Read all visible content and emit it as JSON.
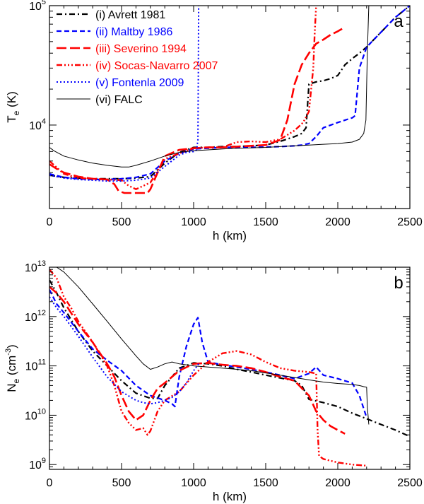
{
  "chart_data": [
    {
      "type": "line",
      "panel_label": "a",
      "xlabel": "h (km)",
      "ylabel_main": "T",
      "ylabel_sub": "e",
      "ylabel_unit": " (K)",
      "y_scale": "log",
      "xlim": [
        0,
        2500
      ],
      "ylim": [
        2000,
        100000
      ],
      "x_ticks": [
        {
          "value": 0,
          "label": "0"
        },
        {
          "value": 500,
          "label": "500"
        },
        {
          "value": 1000,
          "label": "1000"
        },
        {
          "value": 1500,
          "label": "1500"
        },
        {
          "value": 2000,
          "label": "2000"
        },
        {
          "value": 2500,
          "label": "2500"
        }
      ],
      "y_ticks": [
        {
          "value": 10000,
          "base": "10",
          "exp": "4"
        },
        {
          "value": 100000,
          "base": "10",
          "exp": "5"
        }
      ],
      "legend_position": "top-left",
      "series": [
        {
          "name": "(i) Avrett 1981",
          "color": "#000000",
          "dash": "8,4,2,4",
          "width": 2.2,
          "x": [
            0,
            100,
            200,
            300,
            400,
            500,
            600,
            700,
            800,
            900,
            1000,
            1100,
            1200,
            1300,
            1400,
            1500,
            1600,
            1700,
            1750,
            1780,
            1800,
            1850,
            1900,
            1950,
            2000,
            2050,
            2100,
            2150,
            2200,
            2300,
            2400,
            2500
          ],
          "y": [
            3800,
            3650,
            3600,
            3550,
            3550,
            3550,
            3600,
            3700,
            4800,
            5900,
            6500,
            6500,
            6600,
            6600,
            6700,
            6800,
            7300,
            8000,
            8500,
            9500,
            22000,
            23000,
            23500,
            24500,
            26000,
            32000,
            36000,
            40000,
            45000,
            60000,
            80000,
            100000
          ]
        },
        {
          "name": "(ii) Maltby 1986",
          "color": "#0000ff",
          "dash": "7,4",
          "width": 2.2,
          "x": [
            0,
            100,
            200,
            300,
            400,
            500,
            600,
            700,
            800,
            900,
            1000,
            1100,
            1200,
            1300,
            1400,
            1500,
            1600,
            1700,
            1750,
            1800,
            1850,
            1900,
            2000,
            2050,
            2100,
            2120,
            2150,
            2200,
            2300,
            2400,
            2500
          ],
          "y": [
            3900,
            3650,
            3550,
            3500,
            3500,
            3550,
            3650,
            3900,
            5000,
            5800,
            6300,
            6400,
            6500,
            6500,
            6500,
            6550,
            6600,
            6700,
            6800,
            7000,
            8000,
            9500,
            10500,
            11000,
            11500,
            12000,
            30000,
            45000,
            60000,
            80000,
            100000
          ]
        },
        {
          "name": "(iii) Severino 1994",
          "color": "#ff0000",
          "dash": "14,5",
          "width": 2.6,
          "x": [
            0,
            50,
            100,
            200,
            300,
            400,
            450,
            480,
            520,
            600,
            680,
            700,
            800,
            900,
            1000,
            1100,
            1200,
            1300,
            1400,
            1500,
            1600,
            1650,
            1700,
            1750,
            1800,
            1850,
            1900,
            1950,
            2000,
            2030
          ],
          "y": [
            4700,
            4300,
            4000,
            3700,
            3550,
            3500,
            3200,
            2800,
            2700,
            2700,
            2700,
            2900,
            5500,
            6200,
            6400,
            6500,
            6500,
            6600,
            6700,
            6800,
            7500,
            11000,
            22000,
            32000,
            40000,
            48000,
            52000,
            57000,
            61000,
            64000
          ]
        },
        {
          "name": "(iv) Socas-Navarro 2007",
          "color": "#ff0000",
          "dash": "8,3,2,3,2,3,2,3",
          "width": 2.4,
          "x": [
            0,
            100,
            200,
            300,
            400,
            500,
            550,
            600,
            700,
            800,
            900,
            1000,
            1100,
            1200,
            1300,
            1400,
            1500,
            1600,
            1700,
            1760,
            1800,
            1830,
            1840,
            1850
          ],
          "y": [
            5000,
            3900,
            3600,
            3550,
            3500,
            3450,
            3100,
            2900,
            3300,
            5200,
            5800,
            6400,
            6500,
            6500,
            7200,
            7300,
            7200,
            7600,
            9000,
            10500,
            13000,
            30000,
            60000,
            100000
          ]
        },
        {
          "name": "(v) Fontenla 2009",
          "color": "#0000ff",
          "dash": "2,3",
          "width": 2.0,
          "x": [
            0,
            100,
            200,
            300,
            400,
            500,
            600,
            700,
            800,
            900,
            950,
            1000,
            1020,
            1030,
            1033,
            1035
          ],
          "y": [
            3800,
            3600,
            3500,
            3450,
            3400,
            3400,
            3450,
            3600,
            4500,
            5600,
            5900,
            6000,
            6200,
            7500,
            30000,
            100000
          ]
        },
        {
          "name": "(vi) FALC",
          "color": "#000000",
          "dash": "",
          "width": 1.0,
          "x": [
            0,
            30,
            100,
            200,
            300,
            400,
            500,
            550,
            600,
            700,
            800,
            900,
            1000,
            1100,
            1200,
            1300,
            1400,
            1500,
            1600,
            1700,
            1800,
            1900,
            2000,
            2100,
            2150,
            2180,
            2195,
            2205,
            2215
          ],
          "y": [
            6500,
            6100,
            5500,
            5100,
            4800,
            4600,
            4450,
            4450,
            4600,
            5000,
            5500,
            5900,
            6100,
            6200,
            6300,
            6400,
            6450,
            6500,
            6600,
            6700,
            6800,
            6900,
            7000,
            7200,
            7600,
            8500,
            11000,
            40000,
            100000
          ]
        }
      ]
    },
    {
      "type": "line",
      "panel_label": "b",
      "xlabel": "h (km)",
      "ylabel_main": "N",
      "ylabel_sub": "e",
      "ylabel_unit_pre": " (cm",
      "ylabel_unit_exp": "-3",
      "ylabel_unit_post": ")",
      "y_scale": "log",
      "xlim": [
        0,
        2500
      ],
      "ylim": [
        800000000,
        10000000000000
      ],
      "x_ticks": [
        {
          "value": 0,
          "label": "0"
        },
        {
          "value": 500,
          "label": "500"
        },
        {
          "value": 1000,
          "label": "1000"
        },
        {
          "value": 1500,
          "label": "1500"
        },
        {
          "value": 2000,
          "label": "2000"
        },
        {
          "value": 2500,
          "label": "2500"
        }
      ],
      "y_ticks": [
        {
          "value": 1000000000,
          "base": "10",
          "exp": "9"
        },
        {
          "value": 10000000000,
          "base": "10",
          "exp": "10"
        },
        {
          "value": 100000000000,
          "base": "10",
          "exp": "11"
        },
        {
          "value": 1000000000000,
          "base": "10",
          "exp": "12"
        },
        {
          "value": 10000000000000,
          "base": "10",
          "exp": "13"
        }
      ],
      "series": [
        {
          "name": "(i) Avrett 1981",
          "color": "#000000",
          "dash": "8,4,2,4",
          "width": 2.2,
          "x": [
            0,
            50,
            100,
            200,
            300,
            400,
            500,
            600,
            700,
            750,
            800,
            900,
            1000,
            1100,
            1200,
            1300,
            1400,
            1500,
            1600,
            1700,
            1750,
            1800,
            1900,
            2000,
            2100,
            2200,
            2300,
            2400,
            2500
          ],
          "y": [
            5500000000000,
            3000000000000,
            1500000000000,
            500000000000,
            200000000000,
            100000000000,
            50000000000,
            28000000000,
            22000000000,
            22000000000,
            40000000000,
            90000000000,
            115000000000,
            110000000000,
            100000000000,
            85000000000,
            75000000000,
            65000000000,
            57000000000,
            50000000000,
            40000000000,
            21000000000,
            18000000000,
            15000000000,
            11000000000,
            8500000000,
            6500000000,
            5000000000,
            3700000000
          ]
        },
        {
          "name": "(ii) Maltby 1986",
          "color": "#0000ff",
          "dash": "7,4",
          "width": 2.2,
          "x": [
            0,
            50,
            100,
            200,
            300,
            400,
            500,
            600,
            700,
            800,
            850,
            870,
            900,
            950,
            1000,
            1030,
            1060,
            1100,
            1200,
            1300,
            1400,
            1500,
            1600,
            1700,
            1800,
            1850,
            1900,
            2000,
            2100,
            2150,
            2200
          ],
          "y": [
            3500000000000,
            1800000000000,
            1200000000000,
            500000000000,
            220000000000,
            130000000000,
            80000000000,
            40000000000,
            25000000000,
            20000000000,
            17000000000,
            15000000000,
            60000000000,
            250000000000,
            700000000000,
            950000000000,
            300000000000,
            120000000000,
            105000000000,
            95000000000,
            85000000000,
            75000000000,
            65000000000,
            55000000000,
            70000000000,
            95000000000,
            65000000000,
            55000000000,
            45000000000,
            25000000000,
            9000000000
          ]
        },
        {
          "name": "(iii) Severino 1994",
          "color": "#ff0000",
          "dash": "14,5",
          "width": 2.6,
          "x": [
            0,
            50,
            100,
            200,
            300,
            400,
            450,
            500,
            550,
            600,
            650,
            700,
            750,
            800,
            900,
            1000,
            1100,
            1200,
            1300,
            1400,
            1500,
            1600,
            1700,
            1800,
            1850,
            1900,
            1950,
            2000,
            2050
          ],
          "y": [
            4000000000000,
            3000000000000,
            2000000000000,
            700000000000,
            300000000000,
            110000000000,
            60000000000,
            25000000000,
            12000000000,
            8000000000,
            10000000000,
            20000000000,
            35000000000,
            45000000000,
            80000000000,
            110000000000,
            115000000000,
            105000000000,
            100000000000,
            90000000000,
            75000000000,
            60000000000,
            50000000000,
            25000000000,
            12000000000,
            8000000000,
            6000000000,
            5000000000,
            4200000000
          ]
        },
        {
          "name": "(iv) Socas-Navarro 2007",
          "color": "#ff0000",
          "dash": "8,3,2,3,2,3,2,3",
          "width": 2.4,
          "x": [
            0,
            50,
            100,
            150,
            200,
            300,
            400,
            450,
            500,
            550,
            600,
            650,
            680,
            700,
            750,
            800,
            900,
            1000,
            1100,
            1200,
            1300,
            1400,
            1500,
            1600,
            1700,
            1800,
            1850,
            1860,
            1870,
            1900,
            2000,
            2100,
            2200
          ],
          "y": [
            9000000000000,
            6000000000000,
            2500000000000,
            1500000000000,
            800000000000,
            300000000000,
            100000000000,
            40000000000,
            12000000000,
            7000000000,
            5000000000,
            5500000000,
            4000000000,
            4800000000,
            12000000000,
            20000000000,
            30000000000,
            65000000000,
            120000000000,
            180000000000,
            200000000000,
            170000000000,
            120000000000,
            90000000000,
            80000000000,
            75000000000,
            70000000000,
            5000000000,
            1500000000,
            1300000000,
            1100000000,
            1000000000,
            950000000
          ]
        },
        {
          "name": "(v) Fontenla 2009",
          "color": "#0000ff",
          "dash": "2,3",
          "width": 2.0,
          "x": [
            0,
            50,
            100,
            200,
            300,
            400,
            500,
            600,
            650,
            700,
            750,
            800,
            850,
            900,
            950,
            1000,
            1035
          ],
          "y": [
            2500000000000,
            1500000000000,
            1000000000000,
            400000000000,
            150000000000,
            60000000000,
            30000000000,
            20000000000,
            18000000000,
            17000000000,
            18000000000,
            20000000000,
            23000000000,
            30000000000,
            45000000000,
            80000000000,
            110000000000
          ]
        },
        {
          "name": "(vi) FALC",
          "color": "#000000",
          "dash": "",
          "width": 1.0,
          "x": [
            0,
            50,
            100,
            200,
            300,
            400,
            500,
            600,
            650,
            700,
            750,
            800,
            850,
            900,
            1000,
            1100,
            1200,
            1300,
            1400,
            1500,
            1600,
            1700,
            1800,
            1900,
            2000,
            2100,
            2150,
            2180,
            2200,
            2205,
            2215
          ],
          "y": [
            10000000000000,
            10000000000000,
            8000000000000,
            4000000000000,
            1800000000000,
            800000000000,
            350000000000,
            160000000000,
            110000000000,
            85000000000,
            95000000000,
            110000000000,
            120000000000,
            110000000000,
            100000000000,
            95000000000,
            90000000000,
            85000000000,
            80000000000,
            72000000000,
            65000000000,
            58000000000,
            52000000000,
            47000000000,
            44000000000,
            42000000000,
            40000000000,
            38000000000,
            37000000000,
            15000000000,
            6500000000
          ]
        }
      ]
    }
  ]
}
